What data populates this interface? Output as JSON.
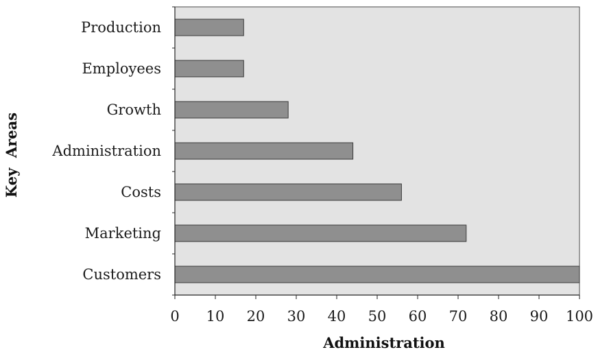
{
  "chart_data": {
    "type": "bar",
    "orientation": "horizontal",
    "categories": [
      "Production",
      "Employees",
      "Growth",
      "Administration",
      "Costs",
      "Marketing",
      "Customers"
    ],
    "values": [
      17,
      17,
      28,
      44,
      56,
      72,
      100
    ],
    "xlabel": "Administration",
    "ylabel": "Key  Areas",
    "xlim": [
      0,
      100
    ],
    "xticks": [
      0,
      10,
      20,
      30,
      40,
      50,
      60,
      70,
      80,
      90,
      100
    ],
    "grid": false,
    "colors": {
      "bar": "#8f8f8f",
      "bar_edge": "#3a3a3a",
      "plot_background": "#e3e3e3",
      "axis": "#222222"
    }
  }
}
